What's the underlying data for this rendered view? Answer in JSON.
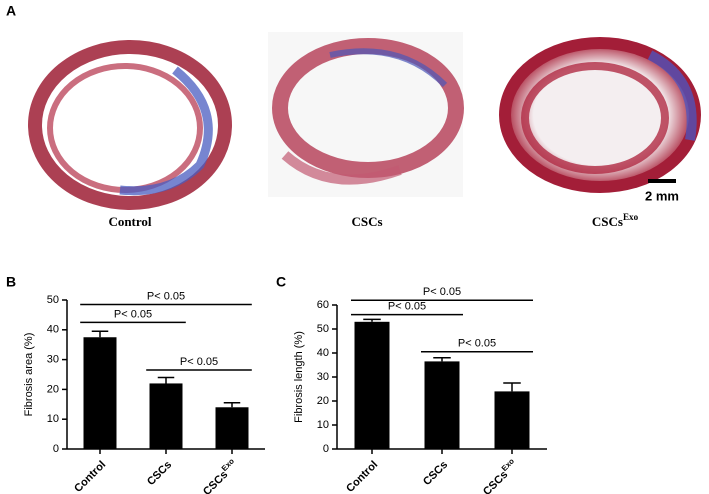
{
  "panel_a": {
    "label": "A",
    "captions": [
      {
        "text": "Control"
      },
      {
        "text": "CSCs"
      },
      {
        "text": "CSCs",
        "sup": "Exo"
      }
    ],
    "scale_bar": "2 mm"
  },
  "chart_data": [
    {
      "type": "bar",
      "panel_label": "B",
      "ylabel": "Fibrosis area (%)",
      "categories": [
        "Control",
        "CSCs",
        "CSCs"
      ],
      "category_superscripts": [
        null,
        null,
        "Exo"
      ],
      "values": [
        37.5,
        22,
        14
      ],
      "errors": [
        2,
        2,
        1.5
      ],
      "color": "#000000",
      "ylim": [
        0,
        50
      ],
      "yticks": [
        0,
        10,
        20,
        30,
        40,
        50
      ],
      "annotations": [
        {
          "text": "P< 0.05",
          "from": 0,
          "to": 2,
          "y": 48.5
        },
        {
          "text": "P< 0.05",
          "from": 0,
          "to": 1,
          "y": 42.5
        },
        {
          "text": "P< 0.05",
          "from": 1,
          "to": 2,
          "y": 26.5
        }
      ]
    },
    {
      "type": "bar",
      "panel_label": "C",
      "ylabel": "Fibrosis length (%)",
      "categories": [
        "Control",
        "CSCs",
        "CSCs"
      ],
      "category_superscripts": [
        null,
        null,
        "Exo"
      ],
      "values": [
        53,
        36.5,
        24
      ],
      "errors": [
        1,
        1.5,
        3.5
      ],
      "color": "#000000",
      "ylim": [
        0,
        60
      ],
      "yticks": [
        0,
        10,
        20,
        30,
        40,
        50,
        60
      ],
      "annotations": [
        {
          "text": "P< 0.05",
          "from": 0,
          "to": 2,
          "y": 62
        },
        {
          "text": "P< 0.05",
          "from": 0,
          "to": 1,
          "y": 56
        },
        {
          "text": "P< 0.05",
          "from": 1,
          "to": 2,
          "y": 40.5
        }
      ]
    }
  ]
}
